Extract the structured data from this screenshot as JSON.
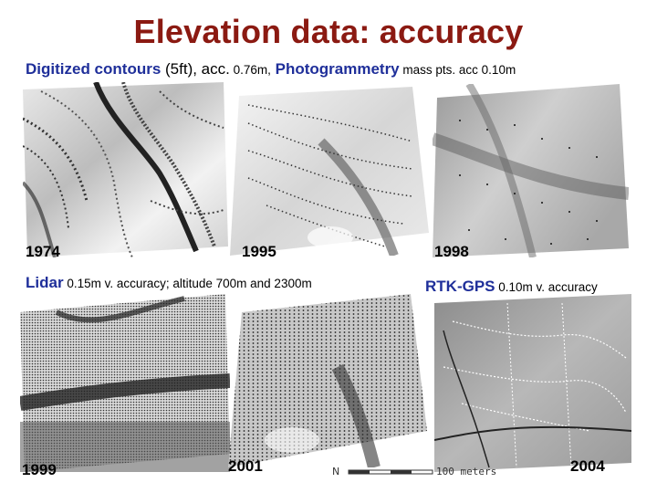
{
  "title": "Elevation data: accuracy",
  "caption_top": {
    "contours_label": "Digitized contours",
    "contours_ft": " (5ft), acc.",
    "contours_acc": " 0.76m,",
    "photo_label": " Photogrammetry",
    "photo_detail": " mass pts. acc",
    "photo_acc": " 0.10m"
  },
  "caption_lidar": {
    "label": "Lidar",
    "detail": " 0.15m v. accuracy; altitude 700m and 2300m"
  },
  "caption_gps": {
    "label": "RTK-GPS",
    "detail": " 0.10m v. accuracy"
  },
  "panels": [
    {
      "year": "1974",
      "kind": "contour-map"
    },
    {
      "year": "1995",
      "kind": "contour-map"
    },
    {
      "year": "1998",
      "kind": "mass-points-map"
    },
    {
      "year": "1999",
      "kind": "lidar-map"
    },
    {
      "year": "2001",
      "kind": "lidar-map"
    },
    {
      "year": "2004",
      "kind": "gps-map"
    }
  ],
  "scale": {
    "north_symbol": "N",
    "label": "100 meters"
  }
}
